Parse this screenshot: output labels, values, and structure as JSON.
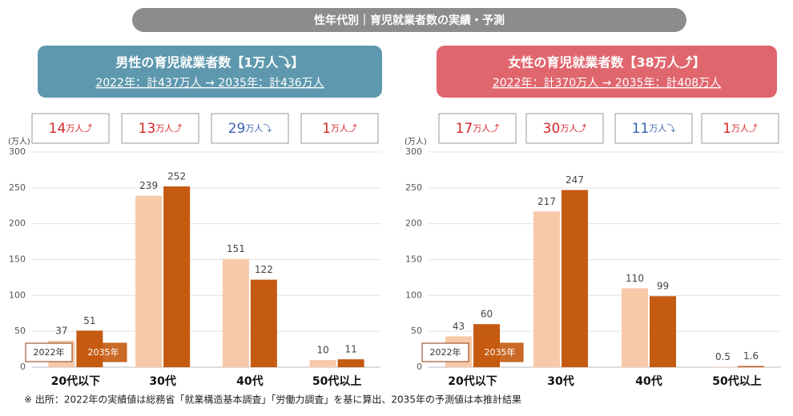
{
  "header": {
    "title": "性年代別｜育児就業者数の実績・予測"
  },
  "panels": [
    {
      "title": "男性の育児就業者数【1万人⤵】",
      "subtitle": "2022年：計437万人 → 2035年：計436万人",
      "color": "#5e98ae",
      "changes": [
        {
          "number": "14",
          "unit": "万人⤴",
          "color": "#d7262b"
        },
        {
          "number": "13",
          "unit": "万人⤴",
          "color": "#d7262b"
        },
        {
          "number": "29",
          "unit": "万人⤵",
          "color": "#3b62b0"
        },
        {
          "number": "1",
          "unit": "万人⤴",
          "color": "#d7262b"
        }
      ]
    },
    {
      "title": "女性の育児就業者数【38万人⤴】",
      "subtitle": "2022年：計370万人 → 2035年：計408万人",
      "color": "#e0666e",
      "changes": [
        {
          "number": "17",
          "unit": "万人⤴",
          "color": "#d7262b"
        },
        {
          "number": "30",
          "unit": "万人⤴",
          "color": "#d7262b"
        },
        {
          "number": "11",
          "unit": "万人⤵",
          "color": "#3b62b0"
        },
        {
          "number": "1",
          "unit": "万人⤴",
          "color": "#d7262b"
        }
      ]
    }
  ],
  "chart_data": [
    {
      "type": "bar",
      "y_label": "(万人)",
      "categories": [
        "20代以下",
        "30代",
        "40代",
        "50代以上"
      ],
      "series": [
        {
          "name": "2022年",
          "color": "#f8c9a9",
          "values": [
            37,
            239,
            151,
            10
          ]
        },
        {
          "name": "2035年",
          "color": "#c55a11",
          "values": [
            51,
            252,
            122,
            11
          ]
        }
      ],
      "ylim": [
        0,
        300
      ],
      "yticks": [
        0,
        50,
        100,
        150,
        200,
        250,
        300
      ],
      "grid": true,
      "legend": "lower left"
    },
    {
      "type": "bar",
      "y_label": "(万人)",
      "categories": [
        "20代以下",
        "30代",
        "40代",
        "50代以上"
      ],
      "series": [
        {
          "name": "2022年",
          "color": "#f8c9a9",
          "values": [
            43,
            217,
            110,
            0.5
          ]
        },
        {
          "name": "2035年",
          "color": "#c55a11",
          "values": [
            60,
            247,
            99,
            1.6
          ]
        }
      ],
      "ylim": [
        0,
        300
      ],
      "yticks": [
        0,
        50,
        100,
        150,
        200,
        250,
        300
      ],
      "grid": true,
      "legend": "lower left"
    }
  ],
  "footnote": "※ 出所：2022年の実績値は総務省「就業構造基本調査」「労働力調査」を基に算出、2035年の予測値は本推計結果"
}
